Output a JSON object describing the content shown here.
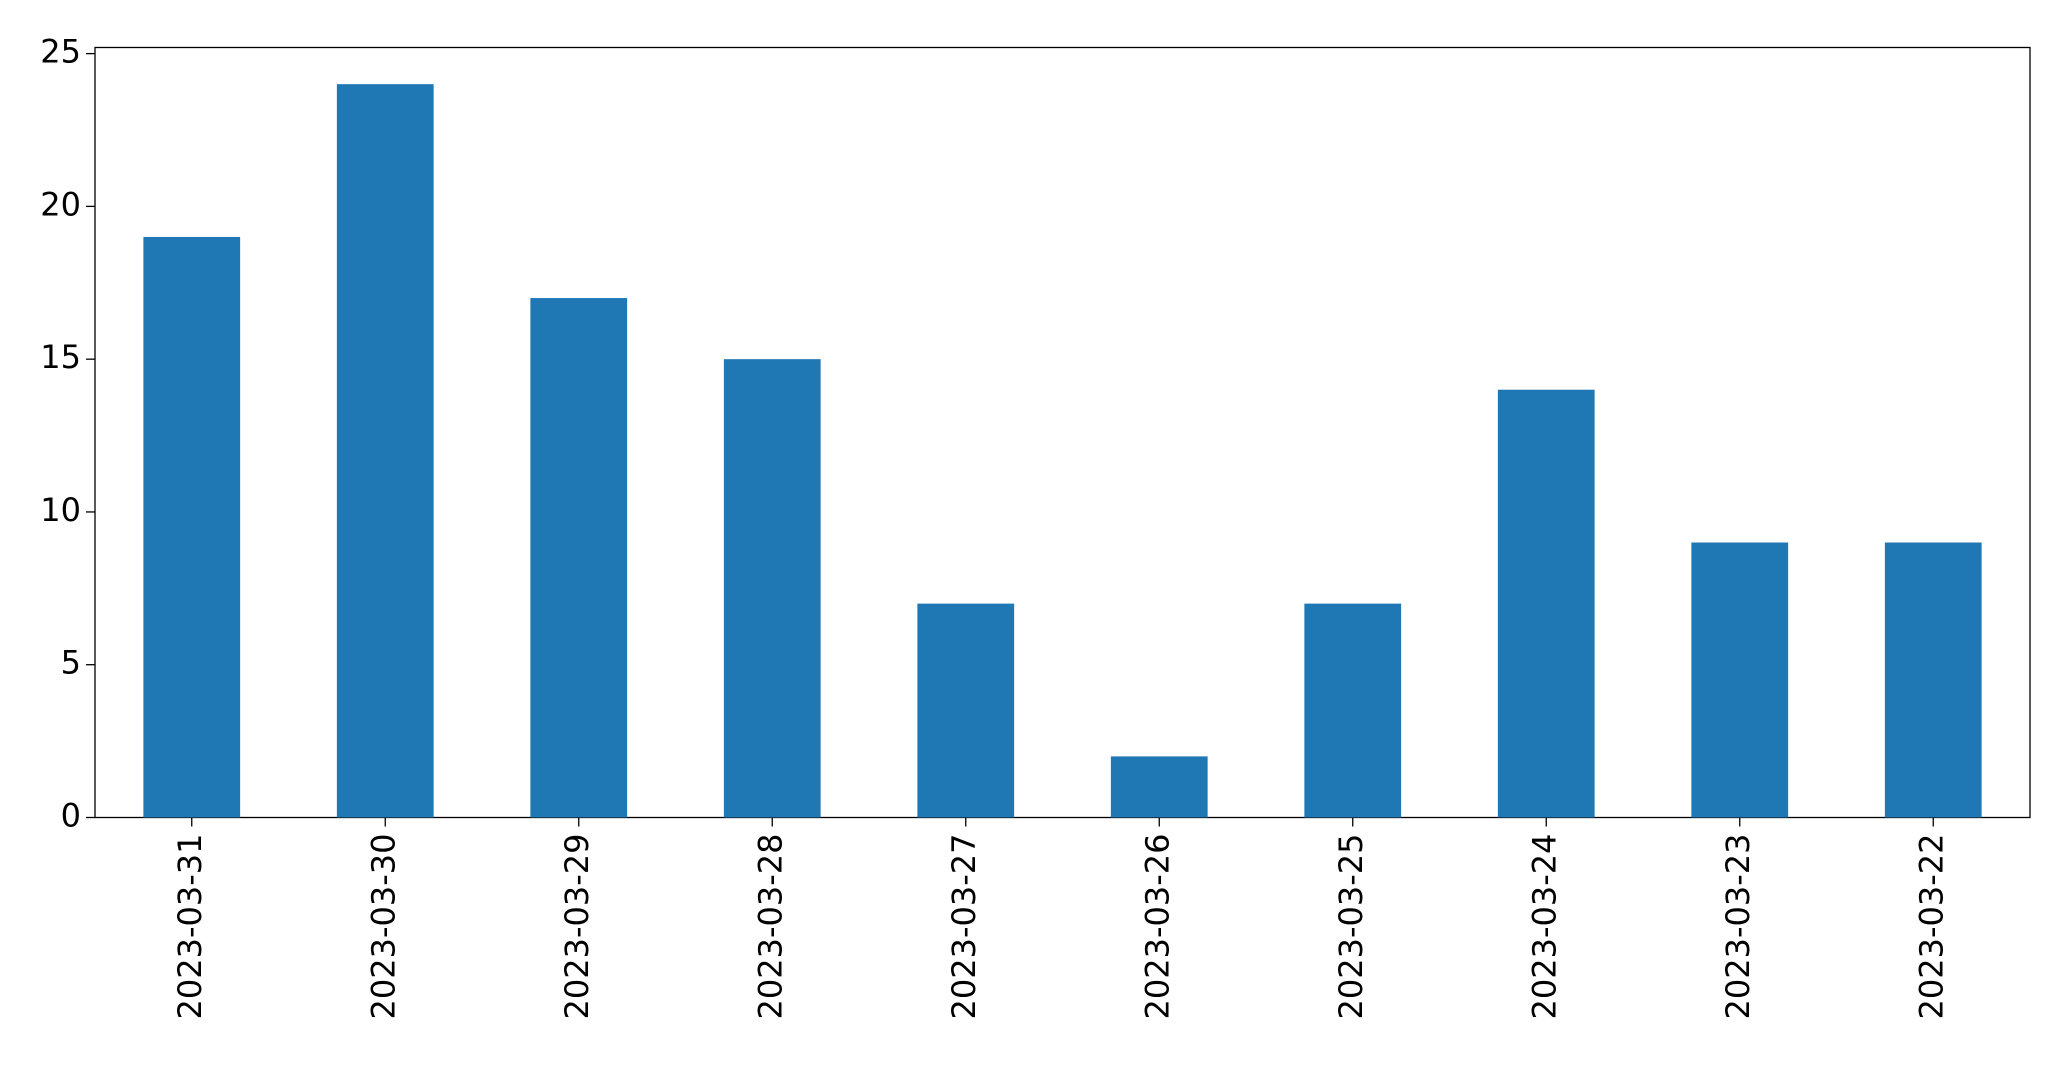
{
  "chart_data": {
    "type": "bar",
    "categories": [
      "2023-03-31",
      "2023-03-30",
      "2023-03-29",
      "2023-03-28",
      "2023-03-27",
      "2023-03-26",
      "2023-03-25",
      "2023-03-24",
      "2023-03-23",
      "2023-03-22"
    ],
    "values": [
      19,
      24,
      17,
      15,
      7,
      2,
      7,
      14,
      9,
      9
    ],
    "color": "#1f77b4",
    "ylim": [
      0,
      25.2
    ],
    "yticks": [
      0,
      5,
      10,
      15,
      20,
      25
    ],
    "grid": false
  }
}
